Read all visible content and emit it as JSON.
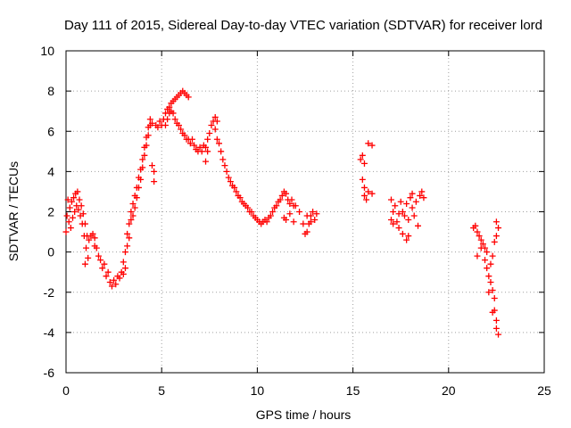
{
  "chart_data": {
    "type": "scatter",
    "title": "Day 111 of 2015, Sidereal Day-to-day VTEC variation (SDTVAR) for receiver lord",
    "xlabel": "GPS time / hours",
    "ylabel": "SDTVAR / TECUs",
    "xlim": [
      0,
      25
    ],
    "ylim": [
      -6,
      10
    ],
    "xticks": [
      "0",
      "5",
      "10",
      "15",
      "20",
      "25"
    ],
    "yticks": [
      "-6",
      "-4",
      "-2",
      "0",
      "2",
      "4",
      "6",
      "8",
      "10"
    ],
    "grid": true,
    "marker": "plus",
    "color": "#ff0000",
    "series": [
      {
        "name": "SDTVAR",
        "points": [
          [
            0.0,
            1.0
          ],
          [
            0.05,
            1.8
          ],
          [
            0.1,
            2.6
          ],
          [
            0.15,
            1.5
          ],
          [
            0.2,
            2.2
          ],
          [
            0.25,
            1.2
          ],
          [
            0.3,
            2.5
          ],
          [
            0.35,
            1.7
          ],
          [
            0.4,
            2.7
          ],
          [
            0.45,
            2.0
          ],
          [
            0.5,
            2.9
          ],
          [
            0.55,
            2.3
          ],
          [
            0.6,
            3.0
          ],
          [
            0.65,
            2.1
          ],
          [
            0.7,
            2.6
          ],
          [
            0.75,
            1.8
          ],
          [
            0.8,
            2.3
          ],
          [
            0.85,
            1.4
          ],
          [
            0.9,
            1.9
          ],
          [
            0.95,
            0.8
          ],
          [
            1.0,
            1.4
          ],
          [
            1.05,
            0.2
          ],
          [
            1.1,
            0.8
          ],
          [
            1.15,
            -0.3
          ],
          [
            1.2,
            0.6
          ],
          [
            1.0,
            -0.6
          ],
          [
            1.3,
            0.8
          ],
          [
            1.4,
            0.9
          ],
          [
            1.5,
            0.7
          ],
          [
            1.5,
            0.3
          ],
          [
            1.6,
            0.2
          ],
          [
            1.7,
            -0.2
          ],
          [
            1.8,
            -0.4
          ],
          [
            1.9,
            -0.8
          ],
          [
            2.0,
            -0.6
          ],
          [
            2.1,
            -1.2
          ],
          [
            2.2,
            -1.0
          ],
          [
            2.3,
            -1.5
          ],
          [
            2.4,
            -1.7
          ],
          [
            2.5,
            -1.4
          ],
          [
            2.6,
            -1.6
          ],
          [
            2.7,
            -1.2
          ],
          [
            2.8,
            -1.3
          ],
          [
            2.9,
            -1.0
          ],
          [
            3.0,
            -1.1
          ],
          [
            3.0,
            -0.5
          ],
          [
            3.1,
            -0.8
          ],
          [
            3.1,
            0.0
          ],
          [
            3.2,
            0.3
          ],
          [
            3.2,
            0.9
          ],
          [
            3.3,
            0.7
          ],
          [
            3.3,
            1.4
          ],
          [
            3.4,
            1.6
          ],
          [
            3.4,
            2.0
          ],
          [
            3.5,
            1.8
          ],
          [
            3.5,
            2.4
          ],
          [
            3.6,
            2.2
          ],
          [
            3.6,
            2.8
          ],
          [
            3.7,
            2.7
          ],
          [
            3.7,
            3.2
          ],
          [
            3.8,
            3.2
          ],
          [
            3.8,
            3.7
          ],
          [
            3.9,
            3.6
          ],
          [
            3.9,
            4.1
          ],
          [
            4.0,
            4.2
          ],
          [
            4.0,
            4.6
          ],
          [
            4.1,
            4.8
          ],
          [
            4.1,
            5.2
          ],
          [
            4.2,
            5.3
          ],
          [
            4.2,
            5.7
          ],
          [
            4.3,
            5.8
          ],
          [
            4.3,
            6.2
          ],
          [
            4.4,
            6.3
          ],
          [
            4.4,
            6.6
          ],
          [
            4.5,
            6.4
          ],
          [
            4.5,
            4.3
          ],
          [
            4.6,
            4.0
          ],
          [
            4.6,
            3.5
          ],
          [
            4.7,
            6.3
          ],
          [
            4.8,
            6.2
          ],
          [
            4.9,
            6.5
          ],
          [
            5.0,
            6.3
          ],
          [
            5.1,
            6.6
          ],
          [
            5.2,
            6.9
          ],
          [
            5.3,
            7.1
          ],
          [
            5.4,
            7.2
          ],
          [
            5.5,
            7.4
          ],
          [
            5.6,
            7.5
          ],
          [
            5.7,
            7.6
          ],
          [
            5.8,
            7.7
          ],
          [
            5.9,
            7.8
          ],
          [
            6.0,
            7.9
          ],
          [
            6.1,
            8.0
          ],
          [
            6.2,
            7.9
          ],
          [
            6.3,
            7.8
          ],
          [
            6.4,
            7.7
          ],
          [
            5.2,
            6.3
          ],
          [
            5.3,
            6.6
          ],
          [
            5.4,
            6.9
          ],
          [
            5.5,
            7.0
          ],
          [
            5.6,
            6.9
          ],
          [
            5.7,
            6.6
          ],
          [
            5.8,
            6.4
          ],
          [
            5.9,
            6.3
          ],
          [
            6.0,
            6.1
          ],
          [
            6.1,
            5.9
          ],
          [
            6.2,
            5.8
          ],
          [
            6.3,
            5.6
          ],
          [
            6.4,
            5.6
          ],
          [
            6.5,
            5.4
          ],
          [
            6.6,
            5.6
          ],
          [
            6.7,
            5.3
          ],
          [
            6.8,
            5.1
          ],
          [
            6.9,
            5.0
          ],
          [
            7.0,
            5.2
          ],
          [
            7.1,
            5.0
          ],
          [
            7.2,
            5.3
          ],
          [
            7.3,
            5.2
          ],
          [
            7.4,
            5.6
          ],
          [
            7.5,
            5.9
          ],
          [
            7.6,
            6.3
          ],
          [
            7.7,
            6.5
          ],
          [
            7.8,
            6.7
          ],
          [
            7.9,
            6.5
          ],
          [
            7.8,
            6.1
          ],
          [
            7.9,
            5.6
          ],
          [
            7.3,
            4.5
          ],
          [
            7.4,
            5.0
          ],
          [
            8.0,
            5.4
          ],
          [
            8.1,
            5.0
          ],
          [
            8.2,
            4.6
          ],
          [
            8.3,
            4.3
          ],
          [
            8.4,
            4.0
          ],
          [
            8.5,
            3.7
          ],
          [
            8.6,
            3.5
          ],
          [
            8.7,
            3.3
          ],
          [
            8.8,
            3.2
          ],
          [
            8.9,
            3.0
          ],
          [
            9.0,
            2.8
          ],
          [
            9.1,
            2.7
          ],
          [
            9.2,
            2.5
          ],
          [
            9.3,
            2.4
          ],
          [
            9.4,
            2.3
          ],
          [
            9.5,
            2.2
          ],
          [
            9.6,
            2.0
          ],
          [
            9.7,
            2.0
          ],
          [
            9.8,
            1.8
          ],
          [
            9.9,
            1.7
          ],
          [
            10.0,
            1.6
          ],
          [
            10.1,
            1.5
          ],
          [
            10.2,
            1.4
          ],
          [
            10.3,
            1.5
          ],
          [
            10.4,
            1.6
          ],
          [
            10.5,
            1.5
          ],
          [
            10.6,
            1.7
          ],
          [
            10.7,
            1.8
          ],
          [
            10.8,
            2.0
          ],
          [
            10.9,
            2.2
          ],
          [
            11.0,
            2.3
          ],
          [
            11.1,
            2.5
          ],
          [
            11.2,
            2.6
          ],
          [
            11.3,
            2.8
          ],
          [
            11.4,
            3.0
          ],
          [
            11.5,
            2.9
          ],
          [
            11.6,
            2.6
          ],
          [
            11.7,
            2.4
          ],
          [
            11.8,
            2.6
          ],
          [
            11.9,
            2.3
          ],
          [
            11.4,
            1.7
          ],
          [
            11.5,
            1.6
          ],
          [
            11.7,
            1.9
          ],
          [
            11.9,
            1.5
          ],
          [
            12.0,
            2.3
          ],
          [
            12.2,
            2.0
          ],
          [
            12.4,
            1.4
          ],
          [
            12.5,
            0.9
          ],
          [
            12.6,
            1.0
          ],
          [
            12.7,
            1.4
          ],
          [
            12.8,
            1.8
          ],
          [
            12.9,
            2.0
          ],
          [
            13.0,
            1.6
          ],
          [
            13.1,
            1.9
          ],
          [
            12.6,
            1.8
          ],
          [
            12.8,
            1.5
          ],
          [
            15.4,
            4.6
          ],
          [
            15.5,
            4.8
          ],
          [
            15.6,
            4.4
          ],
          [
            15.8,
            5.4
          ],
          [
            16.0,
            5.3
          ],
          [
            15.5,
            3.6
          ],
          [
            15.6,
            3.2
          ],
          [
            15.8,
            3.0
          ],
          [
            15.6,
            2.8
          ],
          [
            15.7,
            2.6
          ],
          [
            16.0,
            2.9
          ],
          [
            17.0,
            2.6
          ],
          [
            17.1,
            2.0
          ],
          [
            17.2,
            2.3
          ],
          [
            17.3,
            1.5
          ],
          [
            17.4,
            1.9
          ],
          [
            17.5,
            2.5
          ],
          [
            17.6,
            2.0
          ],
          [
            17.7,
            1.8
          ],
          [
            17.8,
            2.4
          ],
          [
            17.9,
            1.6
          ],
          [
            18.0,
            2.7
          ],
          [
            18.1,
            2.2
          ],
          [
            18.2,
            1.8
          ],
          [
            18.3,
            2.5
          ],
          [
            18.4,
            1.3
          ],
          [
            18.5,
            2.8
          ],
          [
            18.6,
            3.0
          ],
          [
            18.7,
            2.7
          ],
          [
            17.4,
            1.2
          ],
          [
            17.6,
            0.9
          ],
          [
            17.8,
            0.6
          ],
          [
            17.9,
            0.8
          ],
          [
            18.1,
            2.9
          ],
          [
            17.0,
            1.6
          ],
          [
            17.1,
            1.4
          ],
          [
            21.3,
            1.2
          ],
          [
            21.4,
            1.3
          ],
          [
            21.5,
            1.0
          ],
          [
            21.6,
            0.8
          ],
          [
            21.7,
            0.6
          ],
          [
            21.8,
            0.4
          ],
          [
            21.9,
            0.2
          ],
          [
            22.0,
            0.0
          ],
          [
            21.9,
            -0.4
          ],
          [
            22.0,
            -0.8
          ],
          [
            22.1,
            -1.2
          ],
          [
            22.2,
            -1.5
          ],
          [
            22.3,
            -1.9
          ],
          [
            22.4,
            -2.3
          ],
          [
            22.4,
            -2.9
          ],
          [
            22.5,
            -3.4
          ],
          [
            22.5,
            -3.8
          ],
          [
            22.6,
            -4.1
          ],
          [
            22.2,
            -0.6
          ],
          [
            22.3,
            -0.2
          ],
          [
            22.4,
            0.5
          ],
          [
            22.5,
            1.5
          ],
          [
            22.6,
            1.2
          ],
          [
            22.5,
            0.8
          ],
          [
            22.1,
            -2.0
          ],
          [
            22.3,
            -3.0
          ],
          [
            21.5,
            -0.2
          ],
          [
            21.7,
            0.2
          ]
        ]
      }
    ]
  }
}
